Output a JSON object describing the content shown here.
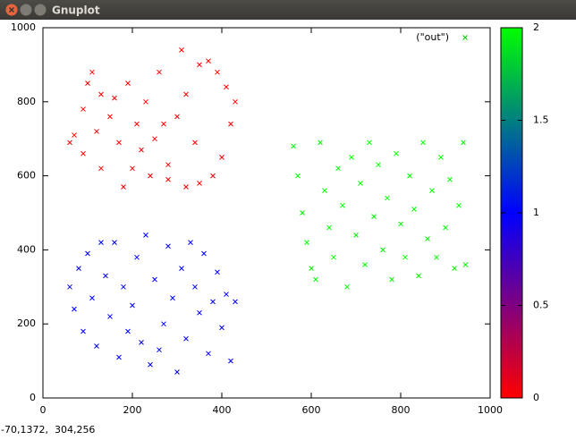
{
  "window": {
    "title": "Gnuplot",
    "status": "-70,1372,  304,256"
  },
  "chart_data": {
    "type": "scatter",
    "xlim": [
      0,
      1000
    ],
    "xticks": [
      0,
      200,
      400,
      600,
      800,
      1000
    ],
    "ylim": [
      0,
      1000
    ],
    "yticks": [
      0,
      200,
      400,
      600,
      800,
      1000
    ],
    "cblim": [
      0,
      2
    ],
    "cbticks": [
      0,
      0.5,
      1,
      1.5,
      2
    ],
    "palette": [
      "#ff0000",
      "#0000ff",
      "#00ff00"
    ],
    "legend": "top-right",
    "series": [
      {
        "name": "(\"out\")",
        "color": "#00cc00",
        "x": [
          70,
          90,
          100,
          110,
          130,
          150,
          170,
          190,
          200,
          210,
          230,
          250,
          260,
          280,
          300,
          320,
          340,
          350,
          370,
          390,
          410,
          430,
          420,
          400,
          380,
          350,
          320,
          280,
          240,
          180,
          130,
          90,
          60,
          120,
          160,
          270,
          310,
          220,
          60,
          70,
          80,
          90,
          100,
          110,
          120,
          140,
          150,
          160,
          170,
          180,
          200,
          210,
          220,
          230,
          240,
          250,
          270,
          280,
          290,
          300,
          310,
          320,
          340,
          350,
          360,
          370,
          380,
          390,
          400,
          410,
          420,
          430,
          130,
          190,
          260,
          330,
          560,
          570,
          580,
          590,
          600,
          610,
          620,
          630,
          640,
          650,
          660,
          670,
          680,
          690,
          700,
          710,
          720,
          730,
          740,
          750,
          760,
          770,
          780,
          790,
          800,
          810,
          820,
          830,
          840,
          850,
          860,
          870,
          880,
          890,
          900,
          910,
          920,
          930,
          940,
          945
        ],
        "y": [
          710,
          780,
          850,
          880,
          820,
          760,
          690,
          850,
          620,
          740,
          800,
          700,
          880,
          630,
          760,
          820,
          690,
          900,
          910,
          880,
          840,
          800,
          740,
          650,
          600,
          580,
          570,
          590,
          600,
          570,
          620,
          660,
          690,
          720,
          810,
          740,
          940,
          670,
          300,
          240,
          350,
          180,
          390,
          270,
          140,
          330,
          220,
          420,
          110,
          300,
          250,
          380,
          150,
          440,
          90,
          320,
          200,
          410,
          270,
          70,
          350,
          160,
          300,
          230,
          390,
          120,
          260,
          340,
          190,
          280,
          100,
          260,
          420,
          180,
          130,
          420,
          680,
          600,
          500,
          420,
          350,
          320,
          690,
          560,
          460,
          380,
          620,
          520,
          300,
          650,
          440,
          580,
          360,
          690,
          490,
          630,
          400,
          540,
          320,
          660,
          470,
          380,
          600,
          510,
          330,
          690,
          430,
          560,
          380,
          650,
          460,
          590,
          350,
          520,
          690,
          360
        ],
        "z": [
          0,
          0,
          0,
          0,
          0,
          0,
          0,
          0,
          0,
          0,
          0,
          0,
          0,
          0,
          0,
          0,
          0,
          0,
          0,
          0,
          0,
          0,
          0,
          0,
          0,
          0,
          0,
          0,
          0,
          0,
          0,
          0,
          0,
          0,
          0,
          0,
          0,
          0,
          1,
          1,
          1,
          1,
          1,
          1,
          1,
          1,
          1,
          1,
          1,
          1,
          1,
          1,
          1,
          1,
          1,
          1,
          1,
          1,
          1,
          1,
          1,
          1,
          1,
          1,
          1,
          1,
          1,
          1,
          1,
          1,
          1,
          1,
          1,
          1,
          1,
          1,
          2,
          2,
          2,
          2,
          2,
          2,
          2,
          2,
          2,
          2,
          2,
          2,
          2,
          2,
          2,
          2,
          2,
          2,
          2,
          2,
          2,
          2,
          2,
          2,
          2,
          2,
          2,
          2,
          2,
          2,
          2,
          2,
          2,
          2,
          2,
          2,
          2,
          2,
          2,
          2
        ]
      }
    ]
  }
}
